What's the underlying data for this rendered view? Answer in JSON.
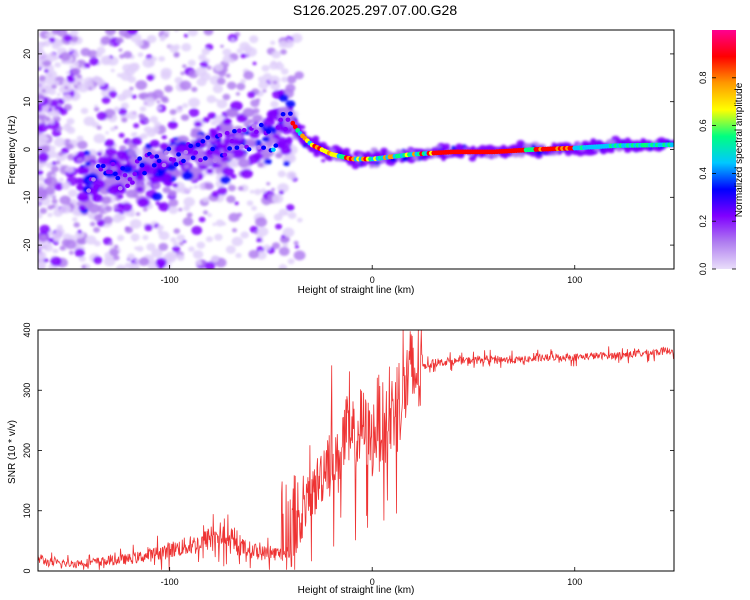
{
  "title": "S126.2025.297.07.00.G28",
  "chart_data": [
    {
      "type": "heatmap",
      "title": "S126.2025.297.07.00.G28",
      "xlabel": "Height of straight line (km)",
      "ylabel": "Frequency (Hz)",
      "xlim": [
        -165,
        149
      ],
      "ylim": [
        -25,
        25
      ],
      "xticks": [
        -100,
        0,
        100
      ],
      "yticks": [
        -20,
        -10,
        0,
        10,
        20
      ],
      "xtick_labels": [
        "-100",
        "0",
        "100"
      ],
      "ytick_labels": [
        "-20",
        "-10",
        "0",
        "10",
        "20"
      ],
      "colorbar": {
        "label": "Normalized spectral amplitude",
        "range": [
          0,
          1
        ],
        "ticks": [
          0.0,
          0.2,
          0.4,
          0.6,
          0.8
        ],
        "tick_labels": [
          "0.0",
          "0.2",
          "0.4",
          "0.6",
          "0.8"
        ],
        "colors": [
          "#e9defa",
          "#b07ef0",
          "#8000ff",
          "#0000ff",
          "#00c8ff",
          "#00ff80",
          "#ffff00",
          "#ff9900",
          "#ff0000",
          "#ff0090"
        ]
      },
      "ridge_x": [
        -135,
        -120,
        -100,
        -80,
        -60,
        -48,
        -40,
        -36,
        -30,
        -20,
        -10,
        0,
        10,
        20,
        40,
        60,
        80,
        100,
        120,
        149
      ],
      "ridge_freq": [
        -6,
        -5,
        -2,
        0,
        2,
        3,
        6,
        3.5,
        1,
        -1,
        -2,
        -2,
        -1.5,
        -1,
        -0.5,
        -0.5,
        0,
        0.3,
        0.8,
        1
      ]
    },
    {
      "type": "line",
      "xlabel": "Height of straight line (km)",
      "ylabel": "SNR (10 * v/v)",
      "xlim": [
        -165,
        149
      ],
      "ylim": [
        0,
        400
      ],
      "xticks": [
        -100,
        0,
        100
      ],
      "yticks": [
        0,
        100,
        200,
        300,
        400
      ],
      "xtick_labels": [
        "-100",
        "0",
        "100"
      ],
      "ytick_labels": [
        "0",
        "100",
        "200",
        "300",
        "400"
      ],
      "series": [
        {
          "name": "SNR",
          "color": "#ee3333",
          "x": [
            -165,
            -160,
            -150,
            -140,
            -130,
            -120,
            -110,
            -100,
            -90,
            -85,
            -80,
            -75,
            -70,
            -65,
            -60,
            -55,
            -50,
            -45,
            -40,
            -36,
            -33,
            -30,
            -27,
            -25,
            -22,
            -20,
            -17,
            -15,
            -13,
            -10,
            -8,
            -5,
            -3,
            0,
            3,
            5,
            8,
            10,
            12,
            14,
            16,
            18,
            20,
            22,
            25,
            30,
            40,
            50,
            60,
            70,
            80,
            90,
            100,
            110,
            120,
            130,
            140,
            149
          ],
          "values": [
            22,
            14,
            12,
            14,
            17,
            20,
            26,
            35,
            42,
            45,
            55,
            60,
            45,
            40,
            35,
            30,
            30,
            28,
            28,
            70,
            110,
            120,
            145,
            160,
            190,
            200,
            175,
            210,
            230,
            205,
            215,
            245,
            225,
            215,
            260,
            245,
            235,
            265,
            280,
            295,
            305,
            318,
            325,
            332,
            340,
            345,
            348,
            350,
            352,
            350,
            352,
            355,
            355,
            357,
            358,
            360,
            363,
            367
          ]
        }
      ]
    }
  ]
}
